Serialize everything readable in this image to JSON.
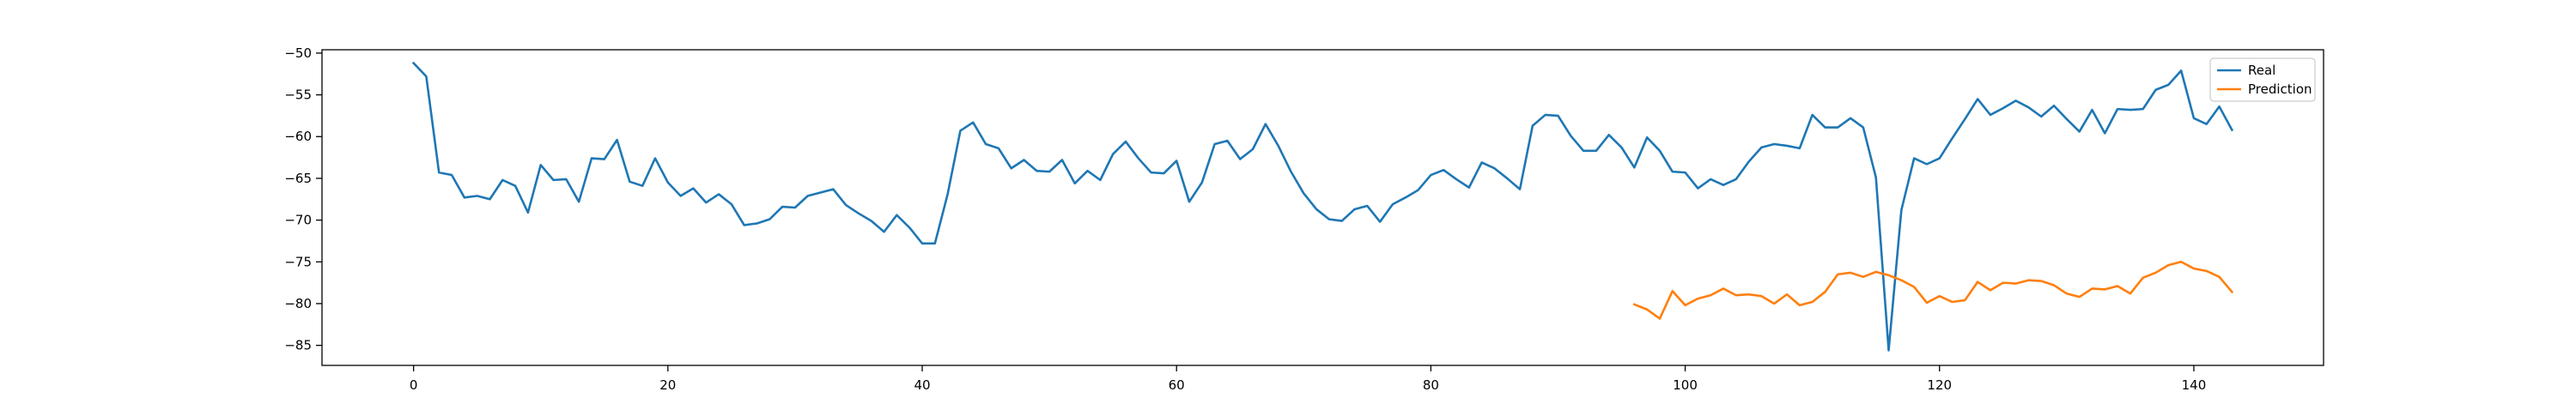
{
  "chart_data": {
    "type": "line",
    "title": "",
    "xlabel": "",
    "ylabel": "",
    "xlim": [
      -7.2,
      150.2
    ],
    "ylim": [
      -87.4,
      -49.6
    ],
    "xticks": [
      0,
      20,
      40,
      60,
      80,
      100,
      120,
      140
    ],
    "yticks": [
      -50,
      -55,
      -60,
      -65,
      -70,
      -75,
      -80,
      -85
    ],
    "grid": false,
    "legend_position": "top-right",
    "series": [
      {
        "name": "Real",
        "color": "#1f77b4",
        "x_start": 0,
        "values": [
          -51.2,
          -52.8,
          -64.3,
          -64.6,
          -67.3,
          -67.1,
          -67.5,
          -65.2,
          -65.9,
          -69.1,
          -63.4,
          -65.2,
          -65.1,
          -67.8,
          -62.6,
          -62.7,
          -60.4,
          -65.4,
          -65.9,
          -62.6,
          -65.5,
          -67.1,
          -66.2,
          -67.9,
          -66.9,
          -68.1,
          -70.6,
          -70.4,
          -69.9,
          -68.4,
          -68.5,
          -67.1,
          -66.7,
          -66.3,
          -68.2,
          -69.2,
          -70.1,
          -71.4,
          -69.4,
          -70.9,
          -72.8,
          -72.8,
          -66.9,
          -59.3,
          -58.3,
          -60.9,
          -61.4,
          -63.8,
          -62.8,
          -64.1,
          -64.2,
          -62.8,
          -65.6,
          -64.1,
          -65.2,
          -62.1,
          -60.6,
          -62.6,
          -64.3,
          -64.4,
          -62.9,
          -67.8,
          -65.5,
          -60.9,
          -60.5,
          -62.7,
          -61.5,
          -58.5,
          -61.1,
          -64.2,
          -66.8,
          -68.7,
          -69.9,
          -70.1,
          -68.7,
          -68.3,
          -70.2,
          -68.1,
          -67.3,
          -66.4,
          -64.6,
          -64.0,
          -65.1,
          -66.1,
          -63.1,
          -63.8,
          -65.0,
          -66.3,
          -58.7,
          -57.4,
          -57.5,
          -59.9,
          -61.7,
          -61.7,
          -59.8,
          -61.3,
          -63.7,
          -60.1,
          -61.7,
          -64.2,
          -64.3,
          -66.2,
          -65.1,
          -65.8,
          -65.1,
          -63.0,
          -61.3,
          -60.9,
          -61.1,
          -61.4,
          -57.4,
          -58.9,
          -58.9,
          -57.8,
          -58.9,
          -64.9,
          -85.6,
          -68.8,
          -62.6,
          -63.3,
          -62.6,
          -60.2,
          -57.9,
          -55.5,
          -57.4,
          -56.6,
          -55.7,
          -56.5,
          -57.6,
          -56.3,
          -57.9,
          -59.4,
          -56.8,
          -59.6,
          -56.7,
          -56.8,
          -56.7,
          -54.4,
          -53.8,
          -52.1,
          -57.8,
          -58.5,
          -56.4,
          -59.2
        ]
      },
      {
        "name": "Prediction",
        "color": "#ff7f0e",
        "x_start": 96,
        "values": [
          -80.1,
          -80.7,
          -81.8,
          -78.5,
          -80.2,
          -79.4,
          -79.0,
          -78.2,
          -79.0,
          -78.9,
          -79.1,
          -80.0,
          -78.9,
          -80.2,
          -79.8,
          -78.6,
          -76.5,
          -76.3,
          -76.8,
          -76.2,
          -76.6,
          -77.2,
          -78.0,
          -79.9,
          -79.1,
          -79.8,
          -79.6,
          -77.4,
          -78.4,
          -77.5,
          -77.6,
          -77.2,
          -77.3,
          -77.8,
          -78.8,
          -79.2,
          -78.2,
          -78.3,
          -77.9,
          -78.8,
          -76.9,
          -76.3,
          -75.4,
          -75.0,
          -75.8,
          -76.1,
          -76.8,
          -78.6
        ]
      }
    ]
  }
}
